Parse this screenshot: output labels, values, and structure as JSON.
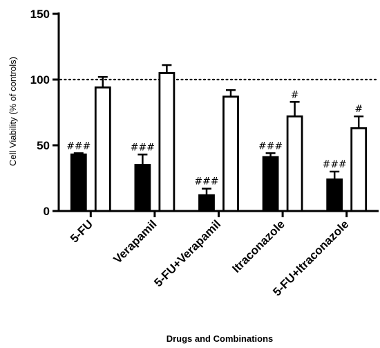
{
  "chart_data": {
    "type": "bar",
    "categories": [
      "5-FU",
      "Verapamil",
      "5-FU+Verapamil",
      "Itraconazole",
      "5-FU+Itraconazole"
    ],
    "series": [
      {
        "color": "#000000",
        "values": [
          43,
          35,
          12,
          41,
          24
        ],
        "errors": [
          1,
          8,
          5,
          3,
          6
        ],
        "annotations": [
          "###",
          "###",
          "###",
          "###",
          "###"
        ]
      },
      {
        "color": "#ffffff",
        "values": [
          94,
          105,
          87,
          72,
          63
        ],
        "errors": [
          8,
          6,
          5,
          11,
          9
        ],
        "annotations": [
          "",
          "",
          "",
          "#",
          "#"
        ]
      }
    ],
    "xlabel": "Drugs and Combinations",
    "ylabel": "Cell Viability (% of controls)",
    "ylim": [
      0,
      150
    ],
    "yticks": [
      0,
      50,
      100,
      150
    ],
    "reference_line": 100,
    "grid": false,
    "legend": "none"
  }
}
